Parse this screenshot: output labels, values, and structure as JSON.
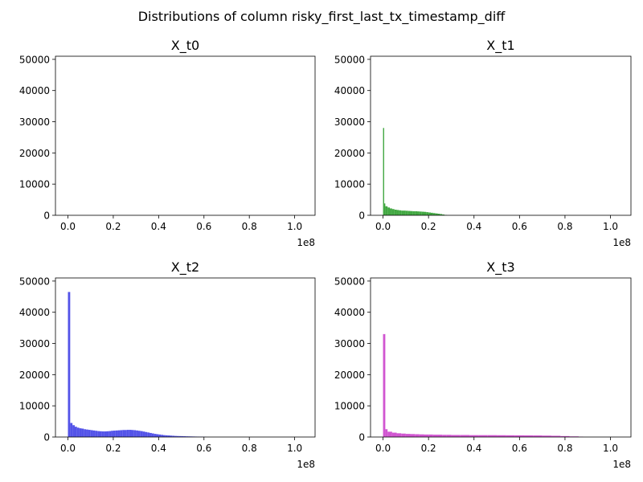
{
  "figure": {
    "title": "Distributions of column risky_first_last_tx_timestamp_diff"
  },
  "chart_data": [
    {
      "type": "histogram",
      "title": "X_t0",
      "color": "#808080",
      "xlim": [
        -5500000,
        109000000
      ],
      "ylim": [
        0,
        51000
      ],
      "x_offset_label": "1e8",
      "xticks": [
        0,
        20000000,
        40000000,
        60000000,
        80000000,
        100000000
      ],
      "xtick_labels": [
        "0.0",
        "0.2",
        "0.4",
        "0.6",
        "0.8",
        "1.0"
      ],
      "yticks": [
        0,
        10000,
        20000,
        30000,
        40000,
        50000
      ],
      "ytick_labels": [
        "0",
        "10000",
        "20000",
        "30000",
        "40000",
        "50000"
      ],
      "bins": []
    },
    {
      "type": "histogram",
      "title": "X_t1",
      "color": "#2e9e2e",
      "xlim": [
        -5500000,
        109000000
      ],
      "ylim": [
        0,
        51000
      ],
      "x_offset_label": "1e8",
      "xticks": [
        0,
        20000000,
        40000000,
        60000000,
        80000000,
        100000000
      ],
      "xtick_labels": [
        "0.0",
        "0.2",
        "0.4",
        "0.6",
        "0.8",
        "1.0"
      ],
      "yticks": [
        0,
        10000,
        20000,
        30000,
        40000,
        50000
      ],
      "ytick_labels": [
        "0",
        "10000",
        "20000",
        "30000",
        "40000",
        "50000"
      ],
      "bins": [
        {
          "x0": 0,
          "x1": 500000,
          "y": 28000
        },
        {
          "x0": 500000,
          "x1": 1000000,
          "y": 3800
        },
        {
          "x0": 1000000,
          "x1": 2000000,
          "y": 2900
        },
        {
          "x0": 2000000,
          "x1": 3000000,
          "y": 2500
        },
        {
          "x0": 3000000,
          "x1": 4000000,
          "y": 2200
        },
        {
          "x0": 4000000,
          "x1": 5000000,
          "y": 2000
        },
        {
          "x0": 5000000,
          "x1": 6000000,
          "y": 1800
        },
        {
          "x0": 6000000,
          "x1": 7000000,
          "y": 1700
        },
        {
          "x0": 7000000,
          "x1": 8000000,
          "y": 1600
        },
        {
          "x0": 8000000,
          "x1": 9000000,
          "y": 1500
        },
        {
          "x0": 9000000,
          "x1": 10000000,
          "y": 1500
        },
        {
          "x0": 10000000,
          "x1": 11000000,
          "y": 1450
        },
        {
          "x0": 11000000,
          "x1": 12000000,
          "y": 1400
        },
        {
          "x0": 12000000,
          "x1": 13000000,
          "y": 1350
        },
        {
          "x0": 13000000,
          "x1": 14000000,
          "y": 1300
        },
        {
          "x0": 14000000,
          "x1": 15000000,
          "y": 1300
        },
        {
          "x0": 15000000,
          "x1": 16000000,
          "y": 1250
        },
        {
          "x0": 16000000,
          "x1": 17000000,
          "y": 1200
        },
        {
          "x0": 17000000,
          "x1": 18000000,
          "y": 1150
        },
        {
          "x0": 18000000,
          "x1": 19000000,
          "y": 1100
        },
        {
          "x0": 19000000,
          "x1": 20000000,
          "y": 1000
        },
        {
          "x0": 20000000,
          "x1": 21000000,
          "y": 900
        },
        {
          "x0": 21000000,
          "x1": 22000000,
          "y": 800
        },
        {
          "x0": 22000000,
          "x1": 23000000,
          "y": 700
        },
        {
          "x0": 23000000,
          "x1": 24000000,
          "y": 600
        },
        {
          "x0": 24000000,
          "x1": 25000000,
          "y": 500
        },
        {
          "x0": 25000000,
          "x1": 26000000,
          "y": 400
        },
        {
          "x0": 26000000,
          "x1": 27000000,
          "y": 250
        },
        {
          "x0": 27000000,
          "x1": 28000000,
          "y": 120
        }
      ]
    },
    {
      "type": "histogram",
      "title": "X_t2",
      "color": "#4040e6",
      "xlim": [
        -5500000,
        109000000
      ],
      "ylim": [
        0,
        51000
      ],
      "x_offset_label": "1e8",
      "xticks": [
        0,
        20000000,
        40000000,
        60000000,
        80000000,
        100000000
      ],
      "xtick_labels": [
        "0.0",
        "0.2",
        "0.4",
        "0.6",
        "0.8",
        "1.0"
      ],
      "yticks": [
        0,
        10000,
        20000,
        30000,
        40000,
        50000
      ],
      "ytick_labels": [
        "0",
        "10000",
        "20000",
        "30000",
        "40000",
        "50000"
      ],
      "bins": [
        {
          "x0": 0,
          "x1": 1000000,
          "y": 46500
        },
        {
          "x0": 1000000,
          "x1": 2000000,
          "y": 4500
        },
        {
          "x0": 2000000,
          "x1": 3000000,
          "y": 3800
        },
        {
          "x0": 3000000,
          "x1": 4000000,
          "y": 3300
        },
        {
          "x0": 4000000,
          "x1": 5000000,
          "y": 3000
        },
        {
          "x0": 5000000,
          "x1": 6000000,
          "y": 2800
        },
        {
          "x0": 6000000,
          "x1": 7000000,
          "y": 2700
        },
        {
          "x0": 7000000,
          "x1": 8000000,
          "y": 2500
        },
        {
          "x0": 8000000,
          "x1": 9000000,
          "y": 2400
        },
        {
          "x0": 9000000,
          "x1": 10000000,
          "y": 2300
        },
        {
          "x0": 10000000,
          "x1": 11000000,
          "y": 2200
        },
        {
          "x0": 11000000,
          "x1": 12000000,
          "y": 2100
        },
        {
          "x0": 12000000,
          "x1": 13000000,
          "y": 2000
        },
        {
          "x0": 13000000,
          "x1": 14000000,
          "y": 1900
        },
        {
          "x0": 14000000,
          "x1": 15000000,
          "y": 1850
        },
        {
          "x0": 15000000,
          "x1": 16000000,
          "y": 1800
        },
        {
          "x0": 16000000,
          "x1": 17000000,
          "y": 1800
        },
        {
          "x0": 17000000,
          "x1": 18000000,
          "y": 1850
        },
        {
          "x0": 18000000,
          "x1": 19000000,
          "y": 1900
        },
        {
          "x0": 19000000,
          "x1": 20000000,
          "y": 2000
        },
        {
          "x0": 20000000,
          "x1": 21000000,
          "y": 2050
        },
        {
          "x0": 21000000,
          "x1": 22000000,
          "y": 2100
        },
        {
          "x0": 22000000,
          "x1": 23000000,
          "y": 2150
        },
        {
          "x0": 23000000,
          "x1": 24000000,
          "y": 2200
        },
        {
          "x0": 24000000,
          "x1": 25000000,
          "y": 2250
        },
        {
          "x0": 25000000,
          "x1": 26000000,
          "y": 2250
        },
        {
          "x0": 26000000,
          "x1": 27000000,
          "y": 2300
        },
        {
          "x0": 27000000,
          "x1": 28000000,
          "y": 2300
        },
        {
          "x0": 28000000,
          "x1": 29000000,
          "y": 2250
        },
        {
          "x0": 29000000,
          "x1": 30000000,
          "y": 2200
        },
        {
          "x0": 30000000,
          "x1": 31000000,
          "y": 2100
        },
        {
          "x0": 31000000,
          "x1": 32000000,
          "y": 2000
        },
        {
          "x0": 32000000,
          "x1": 33000000,
          "y": 1900
        },
        {
          "x0": 33000000,
          "x1": 34000000,
          "y": 1750
        },
        {
          "x0": 34000000,
          "x1": 35000000,
          "y": 1600
        },
        {
          "x0": 35000000,
          "x1": 36000000,
          "y": 1450
        },
        {
          "x0": 36000000,
          "x1": 37000000,
          "y": 1300
        },
        {
          "x0": 37000000,
          "x1": 38000000,
          "y": 1150
        },
        {
          "x0": 38000000,
          "x1": 39000000,
          "y": 1000
        },
        {
          "x0": 39000000,
          "x1": 40000000,
          "y": 900
        },
        {
          "x0": 40000000,
          "x1": 41000000,
          "y": 800
        },
        {
          "x0": 41000000,
          "x1": 42000000,
          "y": 700
        },
        {
          "x0": 42000000,
          "x1": 43000000,
          "y": 600
        },
        {
          "x0": 43000000,
          "x1": 44000000,
          "y": 550
        },
        {
          "x0": 44000000,
          "x1": 45000000,
          "y": 500
        },
        {
          "x0": 45000000,
          "x1": 46000000,
          "y": 450
        },
        {
          "x0": 46000000,
          "x1": 47000000,
          "y": 400
        },
        {
          "x0": 47000000,
          "x1": 48000000,
          "y": 350
        },
        {
          "x0": 48000000,
          "x1": 49000000,
          "y": 320
        },
        {
          "x0": 49000000,
          "x1": 50000000,
          "y": 300
        },
        {
          "x0": 50000000,
          "x1": 51000000,
          "y": 280
        },
        {
          "x0": 51000000,
          "x1": 52000000,
          "y": 250
        },
        {
          "x0": 52000000,
          "x1": 53000000,
          "y": 220
        },
        {
          "x0": 53000000,
          "x1": 54000000,
          "y": 200
        },
        {
          "x0": 54000000,
          "x1": 55000000,
          "y": 180
        },
        {
          "x0": 55000000,
          "x1": 56000000,
          "y": 160
        },
        {
          "x0": 56000000,
          "x1": 57000000,
          "y": 140
        },
        {
          "x0": 57000000,
          "x1": 58000000,
          "y": 120
        },
        {
          "x0": 58000000,
          "x1": 59000000,
          "y": 100
        },
        {
          "x0": 59000000,
          "x1": 60000000,
          "y": 80
        },
        {
          "x0": 60000000,
          "x1": 61000000,
          "y": 60
        }
      ]
    },
    {
      "type": "histogram",
      "title": "X_t3",
      "color": "#cc44cc",
      "xlim": [
        -5500000,
        109000000
      ],
      "ylim": [
        0,
        51000
      ],
      "x_offset_label": "1e8",
      "xticks": [
        0,
        20000000,
        40000000,
        60000000,
        80000000,
        100000000
      ],
      "xtick_labels": [
        "0.0",
        "0.2",
        "0.4",
        "0.6",
        "0.8",
        "1.0"
      ],
      "yticks": [
        0,
        10000,
        20000,
        30000,
        40000,
        50000
      ],
      "ytick_labels": [
        "0",
        "10000",
        "20000",
        "30000",
        "40000",
        "50000"
      ],
      "bins": [
        {
          "x0": 0,
          "x1": 1000000,
          "y": 33000
        },
        {
          "x0": 1000000,
          "x1": 2000000,
          "y": 2500
        },
        {
          "x0": 2000000,
          "x1": 4000000,
          "y": 1700
        },
        {
          "x0": 4000000,
          "x1": 6000000,
          "y": 1400
        },
        {
          "x0": 6000000,
          "x1": 8000000,
          "y": 1200
        },
        {
          "x0": 8000000,
          "x1": 10000000,
          "y": 1100
        },
        {
          "x0": 10000000,
          "x1": 12000000,
          "y": 1000
        },
        {
          "x0": 12000000,
          "x1": 14000000,
          "y": 950
        },
        {
          "x0": 14000000,
          "x1": 16000000,
          "y": 900
        },
        {
          "x0": 16000000,
          "x1": 18000000,
          "y": 850
        },
        {
          "x0": 18000000,
          "x1": 20000000,
          "y": 800
        },
        {
          "x0": 20000000,
          "x1": 22000000,
          "y": 800
        },
        {
          "x0": 22000000,
          "x1": 24000000,
          "y": 750
        },
        {
          "x0": 24000000,
          "x1": 26000000,
          "y": 750
        },
        {
          "x0": 26000000,
          "x1": 28000000,
          "y": 700
        },
        {
          "x0": 28000000,
          "x1": 30000000,
          "y": 700
        },
        {
          "x0": 30000000,
          "x1": 34000000,
          "y": 650
        },
        {
          "x0": 34000000,
          "x1": 38000000,
          "y": 650
        },
        {
          "x0": 38000000,
          "x1": 42000000,
          "y": 600
        },
        {
          "x0": 42000000,
          "x1": 46000000,
          "y": 600
        },
        {
          "x0": 46000000,
          "x1": 50000000,
          "y": 600
        },
        {
          "x0": 50000000,
          "x1": 54000000,
          "y": 580
        },
        {
          "x0": 54000000,
          "x1": 58000000,
          "y": 560
        },
        {
          "x0": 58000000,
          "x1": 62000000,
          "y": 540
        },
        {
          "x0": 62000000,
          "x1": 66000000,
          "y": 520
        },
        {
          "x0": 66000000,
          "x1": 70000000,
          "y": 500
        },
        {
          "x0": 70000000,
          "x1": 74000000,
          "y": 450
        },
        {
          "x0": 74000000,
          "x1": 78000000,
          "y": 400
        },
        {
          "x0": 78000000,
          "x1": 82000000,
          "y": 300
        },
        {
          "x0": 82000000,
          "x1": 86000000,
          "y": 200
        },
        {
          "x0": 86000000,
          "x1": 88000000,
          "y": 100
        }
      ]
    }
  ]
}
